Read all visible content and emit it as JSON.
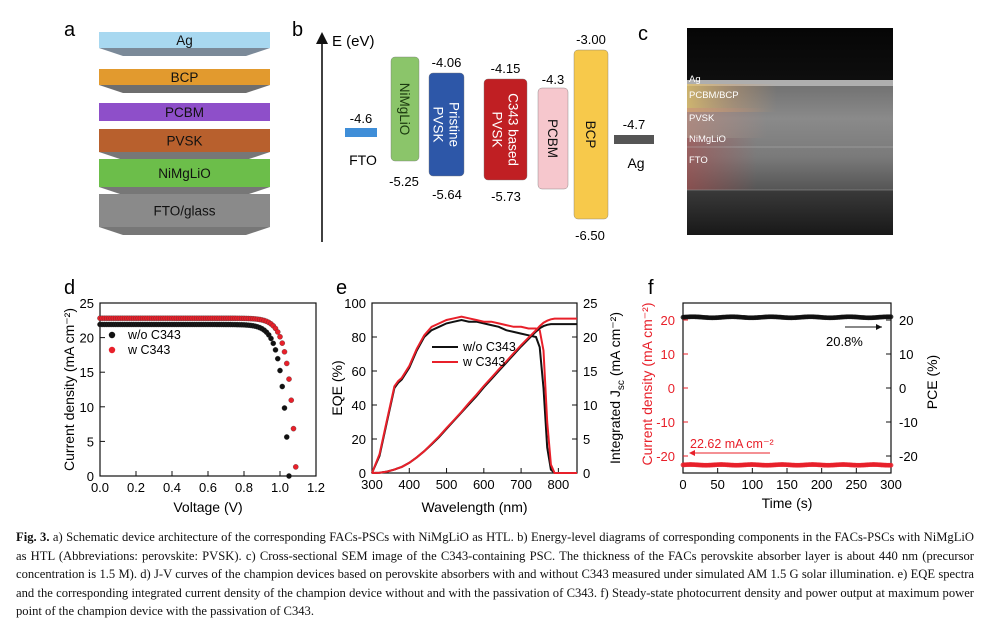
{
  "panels": {
    "a": {
      "label": "a",
      "layers": [
        {
          "name": "Ag",
          "color": "#a8d8f0"
        },
        {
          "name": "BCP",
          "color": "#e29a2e"
        },
        {
          "name": "PCBM",
          "color": "#8e4fc9"
        },
        {
          "name": "PVSK",
          "color": "#b8602d"
        },
        {
          "name": "NiMgLiO",
          "color": "#6cbe4a"
        },
        {
          "name": "FTO/glass",
          "color": "#8a8a8a"
        }
      ]
    },
    "b": {
      "label": "b",
      "axis_label": "E (eV)",
      "fto": {
        "name": "FTO",
        "level": "-4.6",
        "color": "#3f8ed8"
      },
      "ag": {
        "name": "Ag",
        "level": "-4.7",
        "color": "#555555"
      },
      "boxes": [
        {
          "name": "NiMgLiO",
          "top": "",
          "bottom": "-5.25",
          "color": "#8bc56a"
        },
        {
          "name": "Pristine PVSK",
          "top": "-4.06",
          "bottom": "-5.64",
          "color": "#2d57a8"
        },
        {
          "name": "C343 based PVSK",
          "top": "-4.15",
          "bottom": "-5.73",
          "color": "#c01f23"
        },
        {
          "name": "PCBM",
          "top": "-4.3",
          "bottom": "",
          "color": "#f6c7cd"
        },
        {
          "name": "BCP",
          "top": "-3.00",
          "bottom": "-6.50",
          "color": "#f7c94b"
        }
      ]
    },
    "c": {
      "label": "c",
      "sem_labels": [
        "Ag",
        "PCBM/BCP",
        "PVSK",
        "NiMgLiO",
        "FTO"
      ]
    },
    "d": {
      "label": "d",
      "xlabel": "Voltage (V)",
      "ylabel": "Current density (mA cm⁻²)",
      "legend": [
        "w/o C343",
        "w C343"
      ]
    },
    "e": {
      "label": "e",
      "xlabel": "Wavelength (nm)",
      "ylabel_left": "EQE (%)",
      "ylabel_right_main": "Integrated J",
      "ylabel_right_sub": "sc",
      "ylabel_right_unit": " (mA cm⁻²)",
      "legend": [
        "w/o C343",
        "w C343"
      ]
    },
    "f": {
      "label": "f",
      "xlabel": "Time (s)",
      "ylabel_left": "Current density (mA cm⁻²)",
      "ylabel_right": "PCE (%)",
      "annotation_pce": "20.8%",
      "annotation_jsc": "22.62 mA cm⁻²"
    }
  },
  "chart_data": [
    {
      "id": "d",
      "type": "scatter",
      "xlabel": "Voltage (V)",
      "ylabel": "Current density (mA cm-2)",
      "xlim": [
        0.0,
        1.2
      ],
      "ylim": [
        0,
        25
      ],
      "xticks": [
        "0.0",
        "0.2",
        "0.4",
        "0.6",
        "0.8",
        "1.0",
        "1.2"
      ],
      "yticks": [
        "0",
        "5",
        "10",
        "15",
        "20",
        "25"
      ],
      "series": [
        {
          "name": "w/o C343",
          "color": "#111111",
          "jsc": 21.9,
          "voc": 1.05
        },
        {
          "name": "w C343",
          "color": "#e8202a",
          "jsc": 22.8,
          "voc": 1.09
        }
      ]
    },
    {
      "id": "e",
      "type": "line",
      "xlabel": "Wavelength (nm)",
      "ylabel": "EQE (%)",
      "y2label": "Integrated Jsc (mA cm-2)",
      "xlim": [
        300,
        850
      ],
      "ylim": [
        0,
        100
      ],
      "y2lim": [
        0,
        25
      ],
      "xticks": [
        "300",
        "400",
        "500",
        "600",
        "700",
        "800"
      ],
      "yticks": [
        "0",
        "20",
        "40",
        "60",
        "80",
        "100"
      ],
      "y2ticks": [
        "0",
        "5",
        "10",
        "15",
        "20",
        "25"
      ],
      "x": [
        300,
        320,
        340,
        360,
        370,
        380,
        400,
        420,
        440,
        460,
        480,
        500,
        520,
        540,
        560,
        580,
        600,
        620,
        640,
        660,
        680,
        700,
        720,
        740,
        750,
        760,
        770,
        780,
        790,
        800,
        820,
        850
      ],
      "series": [
        {
          "name": "w/o C343 EQE",
          "color": "#111111",
          "values": [
            0,
            10,
            30,
            50,
            53,
            55,
            62,
            72,
            80,
            84,
            86,
            88,
            89,
            90,
            89,
            89,
            88,
            87,
            86,
            84,
            83,
            82,
            81,
            80,
            74,
            50,
            15,
            2,
            0,
            0,
            0,
            0
          ]
        },
        {
          "name": "w C343 EQE",
          "color": "#e8202a",
          "values": [
            0,
            11,
            31,
            51,
            54,
            56,
            63,
            73,
            81,
            86,
            88,
            90,
            91,
            92,
            91,
            90,
            89,
            89,
            88,
            87,
            86,
            86,
            85,
            85,
            84,
            72,
            30,
            5,
            0,
            0,
            0,
            0
          ]
        },
        {
          "name": "w/o C343 integrated Jsc",
          "color": "#111111",
          "values": [
            0,
            0.05,
            0.2,
            0.5,
            0.7,
            0.9,
            1.5,
            2.3,
            3.2,
            4.2,
            5.3,
            6.5,
            7.7,
            8.9,
            10.1,
            11.3,
            12.6,
            13.8,
            15.0,
            16.2,
            17.4,
            18.6,
            19.7,
            20.8,
            21.3,
            21.6,
            21.8,
            21.9,
            21.9,
            21.9,
            21.9,
            21.9
          ]
        },
        {
          "name": "w C343 integrated Jsc",
          "color": "#e8202a",
          "values": [
            0,
            0.05,
            0.2,
            0.5,
            0.7,
            0.9,
            1.5,
            2.3,
            3.2,
            4.3,
            5.4,
            6.6,
            7.8,
            9.0,
            10.3,
            11.5,
            12.8,
            14.0,
            15.2,
            16.4,
            17.6,
            18.8,
            19.9,
            21.0,
            21.6,
            22.1,
            22.4,
            22.6,
            22.7,
            22.7,
            22.7,
            22.7
          ]
        }
      ]
    },
    {
      "id": "f",
      "type": "scatter",
      "xlabel": "Time (s)",
      "ylabel": "Current density (mA cm-2)",
      "y2label": "PCE (%)",
      "xlim": [
        0,
        300
      ],
      "ylim": [
        -25,
        25
      ],
      "xticks": [
        "0",
        "50",
        "100",
        "150",
        "200",
        "250",
        "300"
      ],
      "yticks": [
        "-20",
        "-10",
        "0",
        "10",
        "20"
      ],
      "y2ticks": [
        "-20",
        "-10",
        "0",
        "10",
        "20"
      ],
      "series": [
        {
          "name": "PCE",
          "color": "#111111",
          "value": 20.8
        },
        {
          "name": "Current density",
          "color": "#e8202a",
          "value": -22.62
        }
      ]
    }
  ],
  "caption": {
    "lead": "Fig. 3.",
    "text": "a) Schematic device architecture of the corresponding FACs-PSCs with NiMgLiO as HTL. b) Energy-level diagrams of corresponding components in the FACs-PSCs with NiMgLiO as HTL (Abbreviations: perovskite: PVSK). c) Cross-sectional SEM image of the C343-containing PSC. The thickness of the FACs perovskite absorber layer is about 440 nm (precursor concentration is 1.5 M). d) J-V curves of the champion devices based on perovskite absorbers with and without C343 measured under simulated AM 1.5 G solar illumination. e) EQE spectra and the corresponding integrated current density of the champion device without and with the passivation of C343. f) Steady-state photocurrent density and power output at maximum power point of the champion device with the passivation of C343."
  }
}
